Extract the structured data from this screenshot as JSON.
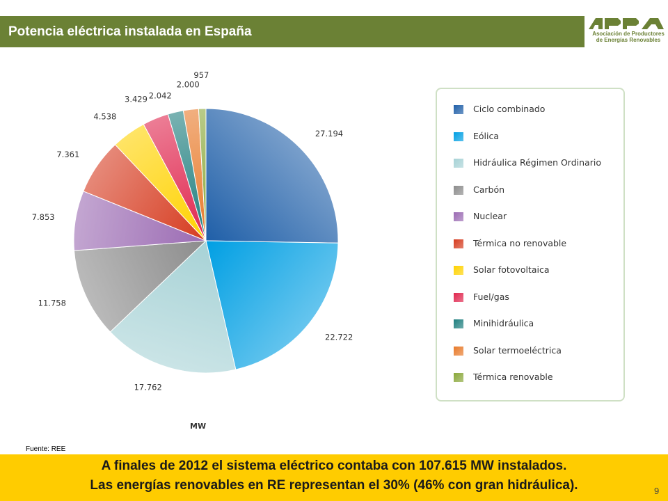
{
  "header": {
    "title": "Potencia eléctrica instalada en España"
  },
  "logo": {
    "text_line1": "Asociación de Productores",
    "text_line2": "de Energías Renovables",
    "wordmark": "APPA"
  },
  "chart_data": {
    "type": "pie",
    "unit": "MW",
    "categories": [
      "Ciclo combinado",
      "Eólica",
      "Hidráulica Régimen Ordinario",
      "Carbón",
      "Nuclear",
      "Térmica no renovable",
      "Solar fotovoltaica",
      "Fuel/gas",
      "Minihidráulica",
      "Solar termoeléctrica",
      "Térmica renovable"
    ],
    "values": [
      27194,
      22722,
      17762,
      11758,
      7853,
      7361,
      4538,
      3429,
      2042,
      2000,
      957
    ],
    "value_labels": [
      "27.194",
      "22.722",
      "17.762",
      "11.758",
      "7.853",
      "7.361",
      "4.538",
      "3.429",
      "2.042",
      "2.000",
      "957"
    ],
    "colors": [
      "#1f5fa8",
      "#009fe3",
      "#a7d2d6",
      "#8c8c8c",
      "#9b6bb3",
      "#d63b1f",
      "#ffd200",
      "#e0264e",
      "#1f7f7f",
      "#e87a2a",
      "#8aa83a"
    ],
    "legend_position": "right"
  },
  "source": "Fuente: REE",
  "footer": {
    "line1": "A finales de 2012 el sistema eléctrico contaba con 107.615 MW instalados.",
    "line2": "Las energías renovables en RE representan el 30% (46% con gran hidráulica)."
  },
  "page_number": "9"
}
